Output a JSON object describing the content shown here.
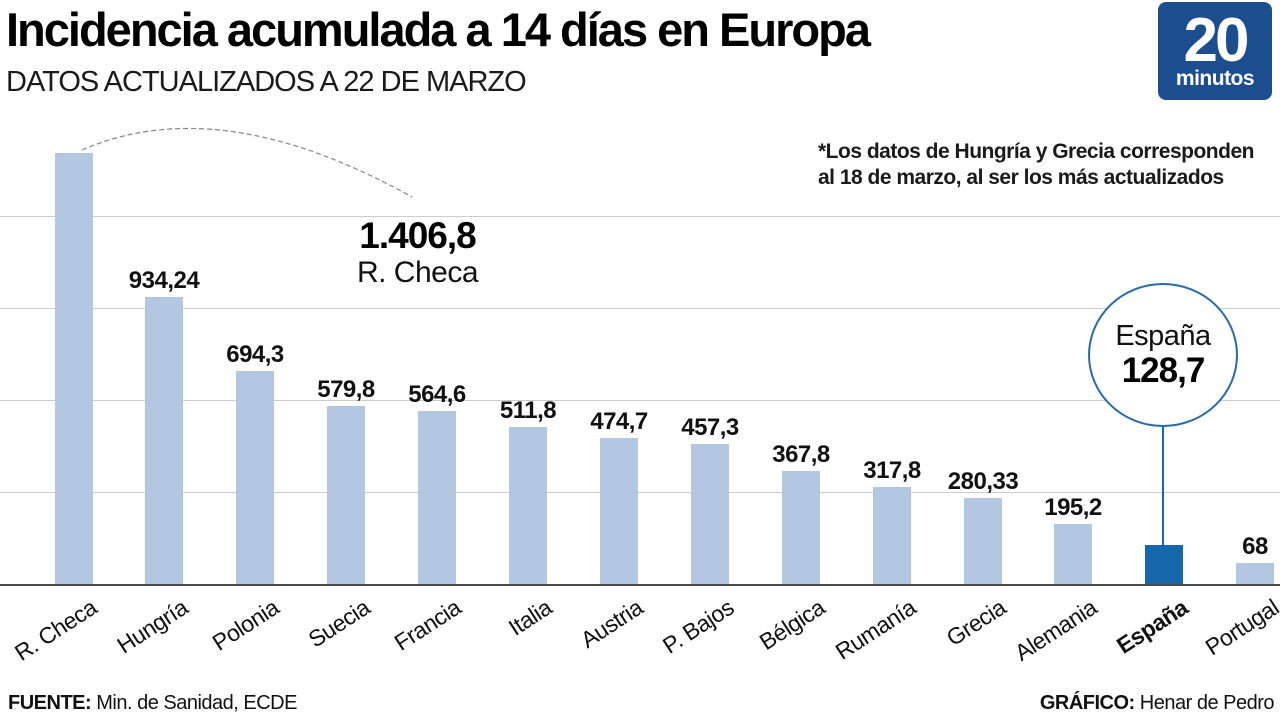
{
  "header": {
    "title": "Incidencia acumulada a 14 días en Europa",
    "subtitle": "DATOS ACTUALIZADOS A 22 DE MARZO"
  },
  "logo": {
    "number": "20",
    "word": "minutos",
    "bg_color": "#1c4e8f"
  },
  "note": {
    "line1": "*Los datos de Hungría y Grecia corresponden",
    "line2": "al 18 de marzo, al ser los más actualizados"
  },
  "annotations": {
    "max": {
      "value": "1.406,8",
      "label": "R. Checa"
    },
    "highlight": {
      "label": "España",
      "value": "128,7"
    }
  },
  "footer": {
    "source_label": "FUENTE:",
    "source": " Min. de Sanidad, ECDE",
    "credit_label": "GRÁFICO:",
    "credit": " Henar de Pedro"
  },
  "chart_data": {
    "type": "bar",
    "title": "Incidencia acumulada a 14 días en Europa",
    "subtitle": "DATOS ACTUALIZADOS A 22 DE MARZO",
    "categories": [
      "R. Checa",
      "Hungría",
      "Polonia",
      "Suecia",
      "Francia",
      "Italia",
      "Austria",
      "P. Bajos",
      "Bélgica",
      "Rumanía",
      "Grecia",
      "Alemania",
      "España",
      "Portugal"
    ],
    "values": [
      1406.8,
      934.24,
      694.3,
      579.8,
      564.6,
      511.8,
      474.7,
      457.3,
      367.8,
      317.8,
      280.33,
      195.2,
      128.7,
      68
    ],
    "value_labels": [
      "1.406,8",
      "934,24",
      "694,3",
      "579,8",
      "564,6",
      "511,8",
      "474,7",
      "457,3",
      "367,8",
      "317,8",
      "280,33",
      "195,2",
      "128,7",
      "68"
    ],
    "xlabel": "",
    "ylabel": "",
    "ylim": [
      0,
      1450
    ],
    "gridlines": [
      300,
      600,
      900,
      1200
    ],
    "grid": true,
    "legend": false,
    "bar_color": "#b4c7e0",
    "highlight_color": "#1668ac",
    "highlight_index": 12,
    "hide_value_label_indices": [
      0,
      12
    ],
    "note": "*Los datos de Hungría y Grecia corresponden al 18 de marzo, al ser los más actualizados"
  }
}
